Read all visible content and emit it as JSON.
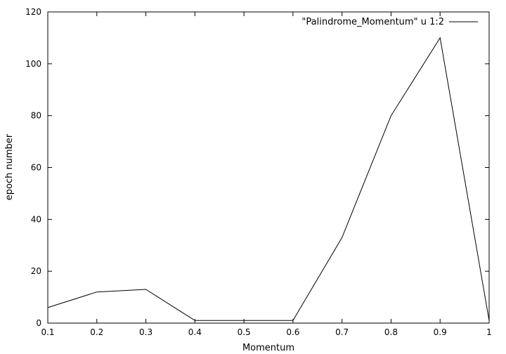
{
  "chart_data": {
    "type": "line",
    "xlabel": "Momentum",
    "ylabel": "epoch number",
    "xlim": [
      0.1,
      1
    ],
    "ylim": [
      0,
      120
    ],
    "xticks": [
      "0.1",
      "0.2",
      "0.3",
      "0.4",
      "0.5",
      "0.6",
      "0.7",
      "0.8",
      "0.9",
      "1"
    ],
    "yticks": [
      "0",
      "20",
      "40",
      "60",
      "80",
      "100",
      "120"
    ],
    "grid": false,
    "legend_position": "top-right",
    "series": [
      {
        "name": "\"Palindrome_Momentum\" u 1:2",
        "color": "#000000",
        "x": [
          0.1,
          0.2,
          0.3,
          0.4,
          0.5,
          0.6,
          0.7,
          0.8,
          0.9,
          1.0
        ],
        "y": [
          6,
          12,
          13,
          1,
          1,
          1,
          33,
          80,
          110,
          1
        ]
      }
    ]
  }
}
